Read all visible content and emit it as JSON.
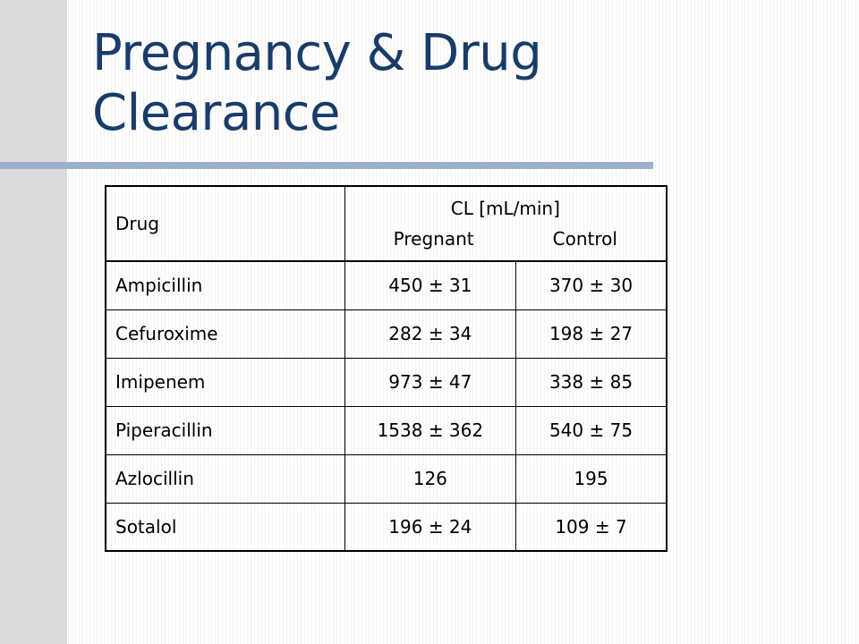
{
  "slide": {
    "title_line1": "Pregnancy & Drug",
    "title_line2": "Clearance"
  },
  "table": {
    "header": {
      "drug": "Drug",
      "cl": "CL [mL/min]",
      "pregnant": "Pregnant",
      "control": "Control"
    },
    "rows": [
      {
        "drug": "Ampicillin",
        "pregnant": "450 ± 31",
        "control": "370 ± 30"
      },
      {
        "drug": "Cefuroxime",
        "pregnant": "282 ± 34",
        "control": "198 ± 27"
      },
      {
        "drug": "Imipenem",
        "pregnant": "973 ± 47",
        "control": "338 ± 85"
      },
      {
        "drug": "Piperacillin",
        "pregnant": "1538 ± 362",
        "control": "540 ± 75"
      },
      {
        "drug": "Azlocillin",
        "pregnant": "126",
        "control": "195"
      },
      {
        "drug": "Sotalol",
        "pregnant": "196 ± 24",
        "control": "109 ± 7"
      }
    ]
  },
  "colors": {
    "title": "#193c69",
    "rule": "#9bb0cc",
    "left_band": "#dcdcdc"
  }
}
